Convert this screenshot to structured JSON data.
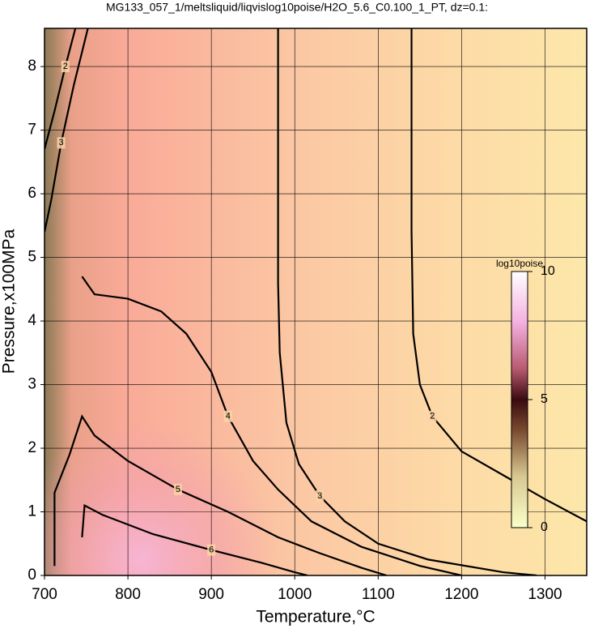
{
  "chart_data": {
    "type": "contour",
    "title": "MG133_057_1/meltsliquid/liqvislog10poise/H2O_5.6_C0.100_1_PT, dz=0.1:",
    "x_label": "Temperature,°C",
    "y_label": "Pressure,x100MPa",
    "xlim": [
      700,
      1350
    ],
    "ylim": [
      0,
      8.6
    ],
    "xticks": [
      700,
      800,
      900,
      1000,
      1100,
      1200,
      1300
    ],
    "yticks": [
      0,
      1,
      2,
      3,
      4,
      5,
      6,
      7,
      8
    ],
    "grid": true,
    "contours": [
      {
        "level": 2,
        "x": [
          1140,
          1140,
          1142,
          1150,
          1165,
          1200,
          1260,
          1300,
          1350
        ],
        "y": [
          8.6,
          5.4,
          3.8,
          3.0,
          2.5,
          1.95,
          1.5,
          1.2,
          0.85
        ]
      },
      {
        "level": 3,
        "x": [
          980,
          980,
          982,
          990,
          1005,
          1030,
          1060,
          1100,
          1160,
          1250,
          1290
        ],
        "y": [
          8.6,
          4.6,
          3.5,
          2.4,
          1.75,
          1.25,
          0.85,
          0.5,
          0.25,
          0.05,
          0
        ]
      },
      {
        "level": 4,
        "x": [
          745,
          760,
          800,
          840,
          870,
          900,
          920,
          950,
          980,
          1020,
          1080,
          1150,
          1200
        ],
        "y": [
          4.7,
          4.42,
          4.35,
          4.15,
          3.8,
          3.2,
          2.5,
          1.8,
          1.35,
          0.85,
          0.45,
          0.15,
          0
        ]
      },
      {
        "level": 5,
        "x": [
          712,
          712,
          730,
          745,
          760,
          800,
          860,
          920,
          980,
          1030,
          1080,
          1110
        ],
        "y": [
          0.15,
          1.3,
          1.9,
          2.5,
          2.2,
          1.8,
          1.35,
          1.0,
          0.6,
          0.35,
          0.12,
          0
        ]
      },
      {
        "level": 6,
        "x": [
          745,
          748,
          770,
          830,
          900,
          960,
          1000,
          1015
        ],
        "y": [
          0.6,
          1.1,
          0.95,
          0.65,
          0.4,
          0.2,
          0.05,
          0
        ]
      },
      {
        "level": 3,
        "x": [
          700,
          708,
          720,
          735,
          752
        ],
        "y": [
          5.4,
          5.9,
          6.8,
          7.7,
          8.6
        ]
      },
      {
        "level": 2,
        "x": [
          700,
          712,
          725,
          737
        ],
        "y": [
          6.7,
          7.3,
          8.0,
          8.6
        ]
      }
    ],
    "colorbar": {
      "label": "log10poise",
      "lim": [
        0,
        10
      ],
      "ticks": [
        0,
        5,
        10
      ]
    }
  }
}
